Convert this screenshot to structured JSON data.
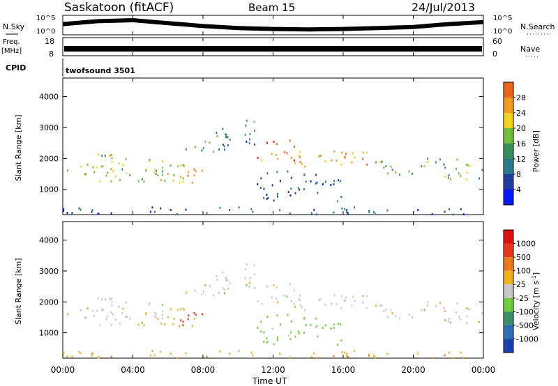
{
  "header": {
    "station": "Saskatoon (fitACF)",
    "beam": "Beam 15",
    "date": "24/Jul/2013"
  },
  "noise_panel": {
    "left_label": "N.Sky",
    "right_label": "N.Search",
    "left_ticks": [
      "10^5",
      "10^0"
    ],
    "right_ticks": [
      "10^5",
      "10^0"
    ]
  },
  "freq_panel": {
    "left_label_line1": "Freq.",
    "left_label_line2": "[MHz]",
    "left_ticks": [
      "18",
      "8"
    ],
    "right_label": "Nave",
    "right_ticks": [
      "60",
      "0"
    ]
  },
  "cpid_panel": {
    "label": "CPID",
    "program": "twofsound 3501"
  },
  "power_panel": {
    "ylabel": "Slant Range [km]",
    "yticks": [
      "4000",
      "3000",
      "2000",
      "1000"
    ],
    "colorbar_label": "Power [dB]",
    "colorbar_ticks": [
      "28",
      "24",
      "20",
      "16",
      "12",
      "8",
      "4"
    ],
    "colors": [
      "#0018ff",
      "#1c3fa0",
      "#2b7a8a",
      "#3a8f5c",
      "#6fbf3a",
      "#f2d21e",
      "#f59a1a",
      "#f0641a",
      "#e32020"
    ]
  },
  "velocity_panel": {
    "ylabel": "Slant Range [km]",
    "yticks": [
      "4000",
      "3000",
      "2000",
      "1000"
    ],
    "colorbar_label": "Velocity [m s",
    "colorbar_label_sup": "-1",
    "colorbar_label_end": "]",
    "colorbar_ticks": [
      "1000",
      "500",
      "100",
      "25",
      "-25",
      "-100",
      "-500",
      "-1000"
    ],
    "colors": [
      "#1a3fb0",
      "#2e6fb8",
      "#3c8f6a",
      "#6fcf3a",
      "#c8c8c8",
      "#f5b020",
      "#f07a1a",
      "#e83a18",
      "#e01010"
    ]
  },
  "x_axis": {
    "label": "Time UT",
    "ticks": [
      "00:00",
      "04:00",
      "08:00",
      "12:00",
      "16:00",
      "20:00",
      "00:00"
    ]
  },
  "chart_data": {
    "type": "heatmap",
    "title": "Saskatoon (fitACF)  Beam 15  24/Jul/2013",
    "xlabel": "Time UT",
    "ylabel": "Slant Range [km]",
    "xlim_hours": [
      0,
      24
    ],
    "ylim_km": [
      180,
      4600
    ],
    "power_scale_db": [
      0,
      32
    ],
    "velocity_scale_ms": [
      -1250,
      1250
    ],
    "noise_sky_trend": [
      {
        "t": 0,
        "level": 0.55
      },
      {
        "t": 2,
        "level": 0.7
      },
      {
        "t": 4,
        "level": 0.75
      },
      {
        "t": 6,
        "level": 0.6
      },
      {
        "t": 8,
        "level": 0.45
      },
      {
        "t": 10,
        "level": 0.35
      },
      {
        "t": 12,
        "level": 0.3
      },
      {
        "t": 14,
        "level": 0.28
      },
      {
        "t": 16,
        "level": 0.3
      },
      {
        "t": 18,
        "level": 0.35
      },
      {
        "t": 20,
        "level": 0.4
      },
      {
        "t": 22,
        "level": 0.55
      },
      {
        "t": 24,
        "level": 0.65
      }
    ],
    "scatter_bands": [
      {
        "t0": 0.0,
        "t1": 3.0,
        "r0": 1200,
        "r1": 2200,
        "power_db": 18,
        "velocity": 0
      },
      {
        "t0": 3.0,
        "t1": 6.0,
        "r0": 1300,
        "r1": 2000,
        "power_db": 16,
        "velocity": 0
      },
      {
        "t0": 4.0,
        "t1": 7.5,
        "r0": 1200,
        "r1": 1800,
        "power_db": 20,
        "velocity": -50
      },
      {
        "t0": 6.0,
        "t1": 8.0,
        "r0": 1200,
        "r1": 1700,
        "power_db": 22,
        "velocity": -600
      },
      {
        "t0": 7.0,
        "t1": 9.5,
        "r0": 2200,
        "r1": 2900,
        "power_db": 12,
        "velocity": 0
      },
      {
        "t0": 9.0,
        "t1": 11.0,
        "r0": 2400,
        "r1": 3300,
        "power_db": 10,
        "velocity": 0
      },
      {
        "t0": 11.0,
        "t1": 13.5,
        "r0": 1900,
        "r1": 2600,
        "power_db": 26,
        "velocity": 0
      },
      {
        "t0": 13.0,
        "t1": 18.0,
        "r0": 1700,
        "r1": 2300,
        "power_db": 22,
        "velocity": 0
      },
      {
        "t0": 18.0,
        "t1": 24.0,
        "r0": 1300,
        "r1": 2000,
        "power_db": 14,
        "velocity": 0
      },
      {
        "t0": 11.0,
        "t1": 16.0,
        "r0": 600,
        "r1": 1600,
        "power_db": 8,
        "velocity": 50
      },
      {
        "t0": 0.0,
        "t1": 24.0,
        "r0": 180,
        "r1": 420,
        "power_db": 6,
        "velocity": -80
      }
    ]
  }
}
